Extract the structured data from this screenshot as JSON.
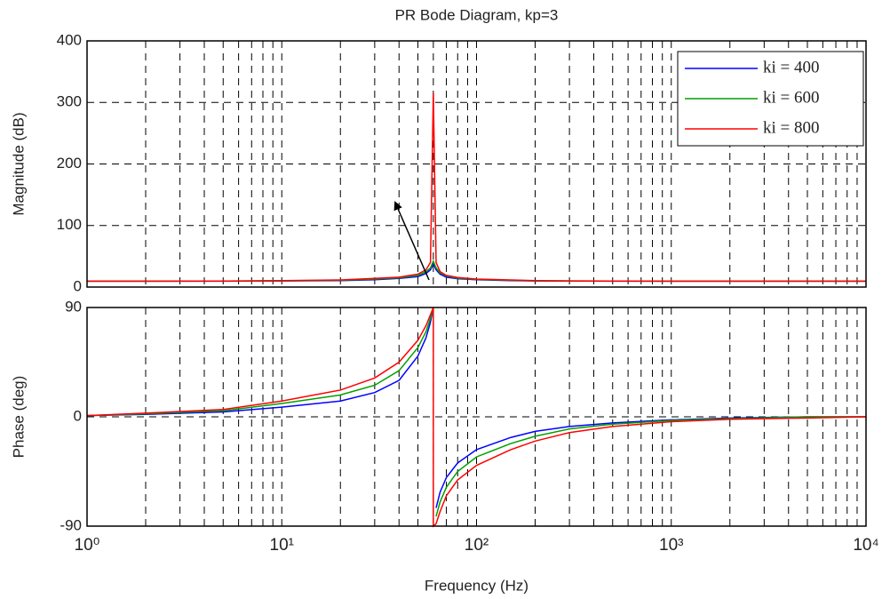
{
  "chart_data": [
    {
      "type": "line",
      "title": "PR Bode Diagram, kp=3",
      "ylabel": "Magnitude (dB)",
      "xscale": "log",
      "grid": true,
      "legend": "upper right",
      "xlim": [
        1,
        10000
      ],
      "xticks": [
        1,
        10,
        100,
        1000,
        10000
      ],
      "ylim": [
        0,
        400
      ],
      "yticks": [
        0,
        100,
        200,
        300,
        400
      ],
      "x": [
        1,
        2,
        5,
        10,
        20,
        30,
        40,
        50,
        55,
        58,
        60,
        60,
        62,
        65,
        70,
        80,
        100,
        150,
        200,
        300,
        500,
        1000,
        2000,
        5000,
        10000
      ],
      "series": [
        {
          "name": "ki = 400",
          "color": "#0000ff",
          "values": [
            9.5,
            9.5,
            9.6,
            10,
            10.5,
            12,
            14,
            17,
            22,
            28,
            38,
            38,
            28,
            21,
            16,
            13.5,
            12,
            10.5,
            10,
            9.8,
            9.6,
            9.5,
            9.5,
            9.5,
            9.5
          ]
        },
        {
          "name": "ki = 600",
          "color": "#00a000",
          "values": [
            9.5,
            9.5,
            9.7,
            10.2,
            11,
            13,
            15,
            19,
            25,
            31,
            42,
            42,
            31,
            23,
            18,
            14.5,
            12.5,
            11,
            10.2,
            9.9,
            9.7,
            9.5,
            9.5,
            9.5,
            9.5
          ]
        },
        {
          "name": "ki = 800",
          "color": "#ff0000",
          "values": [
            9.5,
            9.5,
            9.8,
            10.5,
            11.5,
            14,
            16,
            21,
            28,
            40,
            315,
            315,
            40,
            25,
            19,
            15.5,
            13,
            11.5,
            10.5,
            10,
            9.8,
            9.5,
            9.5,
            9.5,
            9.5
          ]
        }
      ]
    },
    {
      "type": "line",
      "ylabel": "Phase (deg)",
      "xlabel": "Frequency  (Hz)",
      "xscale": "log",
      "grid": true,
      "xlim": [
        1,
        10000
      ],
      "xticks": [
        {
          "value": 1,
          "label": "10⁰"
        },
        {
          "value": 10,
          "label": "10¹"
        },
        {
          "value": 100,
          "label": "10²"
        },
        {
          "value": 1000,
          "label": "10³"
        },
        {
          "value": 10000,
          "label": "10⁴"
        }
      ],
      "ylim": [
        -90,
        90
      ],
      "yticks": [
        -90,
        0,
        90
      ],
      "x": [
        1,
        2,
        5,
        10,
        20,
        30,
        40,
        50,
        55,
        58,
        60,
        60,
        62,
        65,
        70,
        80,
        100,
        150,
        200,
        300,
        500,
        1000,
        2000,
        5000,
        10000
      ],
      "series": [
        {
          "color": "#0000ff",
          "values": [
            1,
            2,
            4,
            8,
            13,
            20,
            30,
            50,
            65,
            78,
            90,
            null,
            -75,
            -62,
            -50,
            -38,
            -27,
            -17,
            -12,
            -8,
            -5,
            -2.5,
            -1,
            0,
            0
          ]
        },
        {
          "color": "#00a000",
          "values": [
            1,
            2.5,
            5,
            11,
            18,
            26,
            38,
            57,
            70,
            81,
            90,
            null,
            -82,
            -70,
            -58,
            -45,
            -33,
            -22,
            -16,
            -10,
            -6,
            -3,
            -1.5,
            0,
            0
          ]
        },
        {
          "color": "#ff0000",
          "values": [
            1,
            3,
            6,
            13,
            22,
            32,
            45,
            63,
            75,
            84,
            90,
            -90,
            -88,
            -78,
            -65,
            -52,
            -40,
            -27,
            -20,
            -13,
            -8,
            -4,
            -2,
            -1,
            0
          ]
        }
      ]
    }
  ]
}
